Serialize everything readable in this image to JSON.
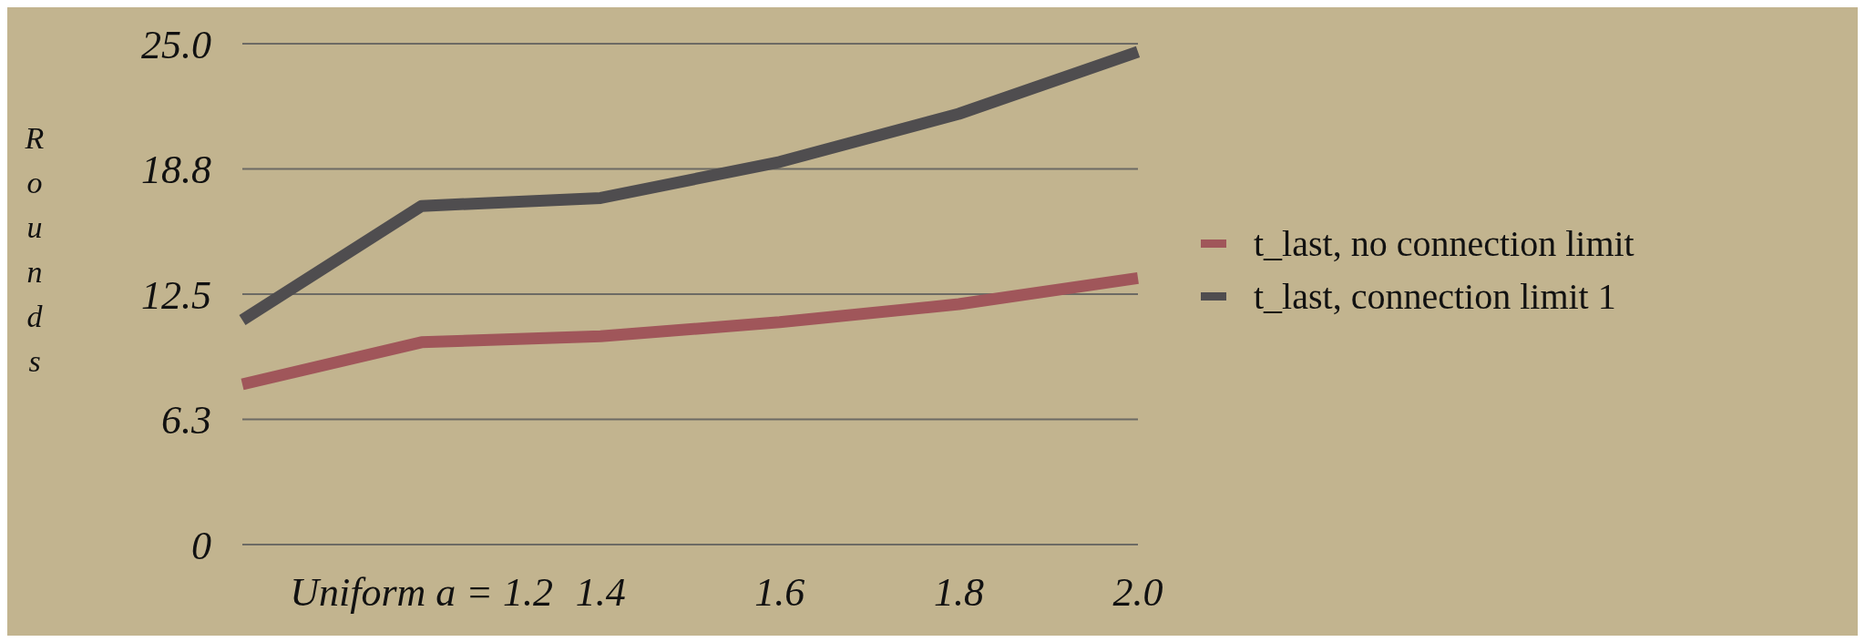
{
  "chart_data": {
    "type": "line",
    "ylabel": "Rounds",
    "categories": [
      null,
      "Uniform a = 1.2",
      "1.4",
      "1.6",
      "1.8",
      "2.0"
    ],
    "series": [
      {
        "name": "t_last, no connection limit",
        "color": "#a0565a",
        "values": [
          8.0,
          10.1,
          10.4,
          11.1,
          12.0,
          13.3
        ]
      },
      {
        "name": "t_last, connection limit 1",
        "color": "#4f4d4f",
        "values": [
          11.2,
          16.9,
          17.3,
          19.1,
          21.5,
          24.6
        ]
      }
    ],
    "ylim": [
      0,
      25
    ],
    "yticks": [
      {
        "value": 0,
        "label": "0"
      },
      {
        "value": 6.25,
        "label": "6.3"
      },
      {
        "value": 12.5,
        "label": "12.5"
      },
      {
        "value": 18.75,
        "label": "18.8"
      },
      {
        "value": 25,
        "label": "25.0"
      }
    ],
    "grid": "y",
    "legend": "right",
    "marker": "none",
    "line_style": "solid"
  }
}
